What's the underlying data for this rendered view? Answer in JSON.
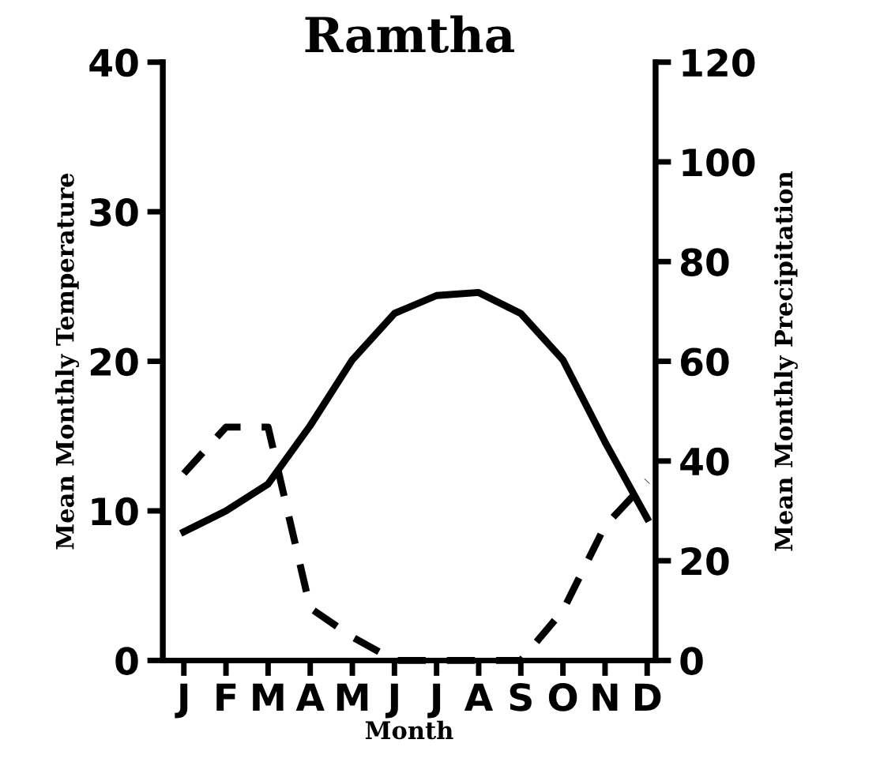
{
  "chart_data": {
    "type": "line",
    "title": "Ramtha",
    "xlabel": "Month",
    "ylabel": "Mean Monthly Temperature",
    "y2label": "Mean Monthly Precipitation",
    "categories": [
      "J",
      "F",
      "M",
      "A",
      "M",
      "J",
      "J",
      "A",
      "S",
      "O",
      "N",
      "D"
    ],
    "series": [
      {
        "color": "#000000",
        "line_style": "solid",
        "values": [
          8.6,
          10.0,
          11.8,
          15.7,
          20.1,
          23.2,
          24.4,
          24.6,
          23.2,
          20.1,
          14.6,
          9.5
        ]
      },
      {
        "color": "#000000",
        "line_style": "dashed",
        "axis": "y2",
        "values": [
          37.5,
          46.8,
          46.8,
          10.5,
          4.7,
          0,
          0,
          0,
          0,
          10,
          27,
          36
        ]
      }
    ],
    "ylim": [
      0,
      40
    ],
    "yticks": [
      0,
      10,
      20,
      30,
      40
    ],
    "y2lim": [
      0,
      120
    ],
    "y2ticks": [
      0,
      20,
      40,
      60,
      80,
      100,
      120
    ],
    "grid": false,
    "legend": false,
    "marker": "none"
  }
}
